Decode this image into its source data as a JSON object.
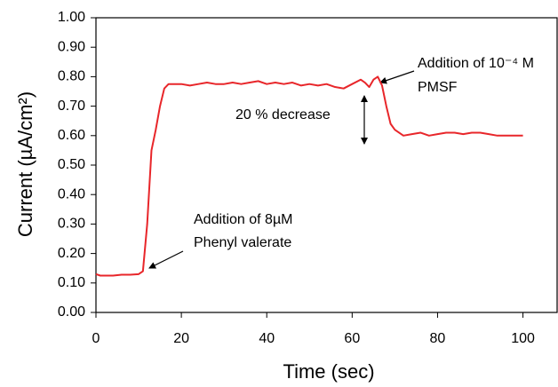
{
  "chart_data": {
    "type": "line",
    "x_label": "Time (sec)",
    "y_label": "Current (µA/cm²)",
    "xlim": [
      0,
      108
    ],
    "xticks": [
      0,
      20,
      40,
      60,
      80,
      100
    ],
    "ylim": [
      0,
      1
    ],
    "yticks": [
      {
        "value": 0,
        "label": "0.00"
      },
      {
        "value": 0.1,
        "label": "0.10"
      },
      {
        "value": 0.2,
        "label": "0.20"
      },
      {
        "value": 0.3,
        "label": "0.30"
      },
      {
        "value": 0.4,
        "label": "0.40"
      },
      {
        "value": 0.5,
        "label": "0.50"
      },
      {
        "value": 0.6,
        "label": "0.60"
      },
      {
        "value": 0.7,
        "label": "0.70"
      },
      {
        "value": 0.8,
        "label": "0.80"
      },
      {
        "value": 0.9,
        "label": "0.90"
      },
      {
        "value": 1,
        "label": "1.00"
      }
    ],
    "color": "#e8262a",
    "x": [
      0,
      1,
      2,
      4,
      6,
      8,
      10,
      11,
      12,
      13,
      14,
      15,
      16,
      17,
      18,
      20,
      22,
      24,
      26,
      28,
      30,
      32,
      34,
      36,
      38,
      40,
      42,
      44,
      46,
      48,
      50,
      52,
      54,
      56,
      58,
      60,
      62,
      63,
      64,
      65,
      66,
      67,
      68,
      69,
      70,
      72,
      74,
      76,
      78,
      80,
      82,
      84,
      86,
      88,
      90,
      92,
      94,
      96,
      98,
      100
    ],
    "values": [
      0.13,
      0.125,
      0.125,
      0.125,
      0.128,
      0.128,
      0.13,
      0.14,
      0.3,
      0.55,
      0.62,
      0.7,
      0.76,
      0.775,
      0.775,
      0.775,
      0.77,
      0.775,
      0.78,
      0.775,
      0.775,
      0.78,
      0.775,
      0.78,
      0.785,
      0.775,
      0.78,
      0.775,
      0.78,
      0.77,
      0.775,
      0.77,
      0.775,
      0.765,
      0.76,
      0.775,
      0.79,
      0.78,
      0.765,
      0.79,
      0.8,
      0.77,
      0.7,
      0.64,
      0.62,
      0.6,
      0.605,
      0.61,
      0.6,
      0.605,
      0.61,
      0.61,
      0.605,
      0.61,
      0.61,
      0.605,
      0.6,
      0.6,
      0.6,
      0.6
    ],
    "annotations": [
      "Addition of 8µM",
      "Phenyl valerate",
      "Addition of 10⁻⁴ M",
      "PMSF",
      "20 % decrease"
    ]
  }
}
